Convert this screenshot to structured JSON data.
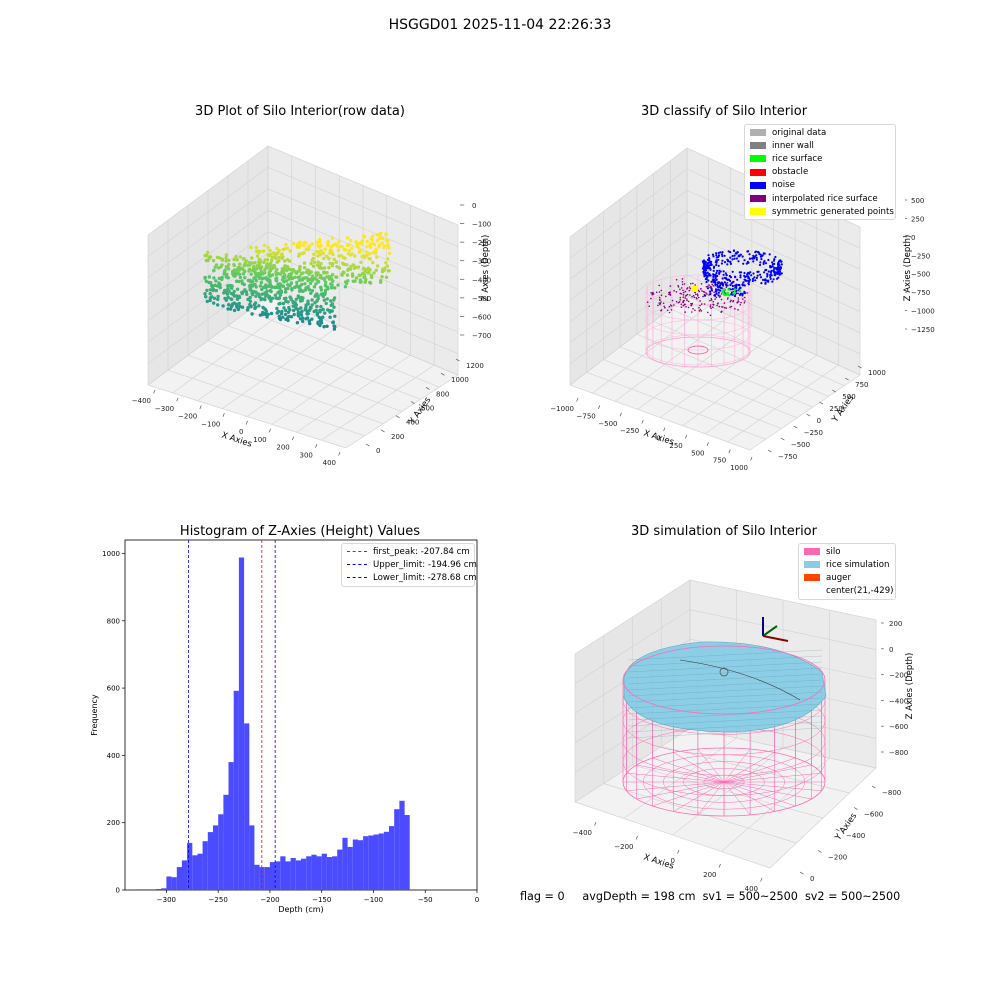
{
  "suptitle": "HSGGD01 2025-11-04 22:26:33",
  "footer": "flag = 0     avgDepth = 198 cm  sv1 = 500~2500  sv2 = 500~2500",
  "colors": {
    "rice_sim": "#87cde6",
    "silo": "#ff69b4",
    "auger": "#ff4500",
    "hist": "#4b4bff"
  },
  "chart_data": [
    {
      "type": "scatter",
      "subtype": "3d",
      "title": "3D Plot of Silo Interior(row data)",
      "xlabel": "X Axies",
      "ylabel": "Y Axies",
      "zlabel": "Z Axies (Depth)",
      "xlim": [
        -400,
        400
      ],
      "ylim": [
        0,
        1200
      ],
      "zlim": [
        -700,
        0
      ],
      "x_ticks": [
        "−400",
        "−300",
        "−200",
        "−100",
        "0",
        "100",
        "200",
        "300",
        "400"
      ],
      "y_ticks": [
        "0",
        "200",
        "400",
        "600",
        "800",
        "1000",
        "1200"
      ],
      "z_ticks": [
        "0",
        "−100",
        "−200",
        "−300",
        "−400",
        "−500",
        "−600",
        "−700"
      ],
      "colormap": "viridis"
    },
    {
      "type": "scatter",
      "subtype": "3d",
      "title": "3D classify of Silo Interior",
      "xlabel": "X Axies",
      "ylabel": "Y Axies",
      "zlabel": "Z Axies (Depth)",
      "xlim": [
        -1000,
        1000
      ],
      "ylim": [
        -750,
        1000
      ],
      "zlim": [
        -1250,
        500
      ],
      "x_ticks": [
        "−1000",
        "−750",
        "−500",
        "−250",
        "0",
        "250",
        "500",
        "750",
        "1000"
      ],
      "y_ticks": [
        "−750",
        "−500",
        "−250",
        "0",
        "250",
        "500",
        "750",
        "1000"
      ],
      "z_ticks": [
        "500",
        "250",
        "0",
        "−250",
        "−500",
        "−750",
        "−1000",
        "−1250"
      ],
      "legend": [
        {
          "label": "original data",
          "color": "#b0b0b0"
        },
        {
          "label": "inner wall",
          "color": "#808080"
        },
        {
          "label": "rice surface",
          "color": "#00ff00"
        },
        {
          "label": "obstacle",
          "color": "#ff0000"
        },
        {
          "label": "noise",
          "color": "#0000ff"
        },
        {
          "label": "interpolated rice surface",
          "color": "#800080"
        },
        {
          "label": "symmetric generated points",
          "color": "#ffff00"
        }
      ],
      "legend_position": "top-right"
    },
    {
      "type": "bar",
      "subtype": "histogram",
      "title": "Histogram of Z-Axies (Height) Values",
      "xlabel": "Depth (cm)",
      "ylabel": "Frequency",
      "xlim": [
        -340,
        0
      ],
      "ylim": [
        0,
        1040
      ],
      "x_ticks": [
        -300,
        -250,
        -200,
        -150,
        -100,
        -50,
        0
      ],
      "y_ticks": [
        0,
        200,
        400,
        600,
        800,
        1000
      ],
      "bin_width": 5,
      "bins_start": [
        -330,
        -325,
        -320,
        -315,
        -310,
        -305,
        -300,
        -295,
        -290,
        -285,
        -280,
        -275,
        -270,
        -265,
        -260,
        -255,
        -250,
        -245,
        -240,
        -235,
        -230,
        -225,
        -220,
        -215,
        -210,
        -205,
        -200,
        -195,
        -190,
        -185,
        -180,
        -175,
        -170,
        -165,
        -160,
        -155,
        -150,
        -145,
        -140,
        -135,
        -130,
        -125,
        -120,
        -115,
        -110,
        -105,
        -100,
        -95,
        -90,
        -85,
        -80,
        -75,
        -70,
        -65,
        -60,
        -55,
        -50,
        -45,
        -40,
        -35,
        -30,
        -25,
        -20,
        -15
      ],
      "values": [
        2,
        2,
        2,
        2,
        3,
        5,
        40,
        38,
        68,
        88,
        140,
        103,
        108,
        145,
        172,
        192,
        225,
        283,
        380,
        592,
        988,
        495,
        192,
        75,
        68,
        68,
        83,
        85,
        100,
        85,
        95,
        88,
        93,
        100,
        105,
        100,
        108,
        98,
        100,
        120,
        155,
        128,
        150,
        148,
        160,
        162,
        165,
        168,
        173,
        190,
        240,
        265,
        223,
        0,
        0,
        0,
        0,
        0,
        0,
        0,
        0,
        0,
        0,
        0
      ],
      "reference_lines": [
        {
          "label": "first_peak: -207.84 cm",
          "value": -207.84,
          "color": "#ff0000"
        },
        {
          "label": "Upper_limit: -194.96 cm",
          "value": -194.96,
          "color": "#0000ff"
        },
        {
          "label": "Lower_limit: -278.68 cm",
          "value": -278.68,
          "color": "#0000ff"
        }
      ],
      "legend_position": "top-right"
    },
    {
      "type": "area",
      "subtype": "3d-surface",
      "title": "3D simulation of Silo Interior",
      "xlabel": "X Axies",
      "ylabel": "Y Axies",
      "zlabel": "Z Axies (Depth)",
      "x_ticks": [
        "−400",
        "−200",
        "0",
        "200",
        "400"
      ],
      "y_ticks": [
        "0",
        "−200",
        "−400",
        "−600",
        "−800"
      ],
      "z_ticks": [
        "200",
        "0",
        "−200",
        "−400",
        "−600",
        "−800"
      ],
      "legend": [
        {
          "label": "silo",
          "color": "#ff69b4"
        },
        {
          "label": "rice simulation",
          "color": "#87cde6"
        },
        {
          "label": "auger",
          "color": "#ff4500"
        },
        {
          "label": "center(21,-429)",
          "color": null
        }
      ],
      "legend_position": "top-right"
    }
  ]
}
